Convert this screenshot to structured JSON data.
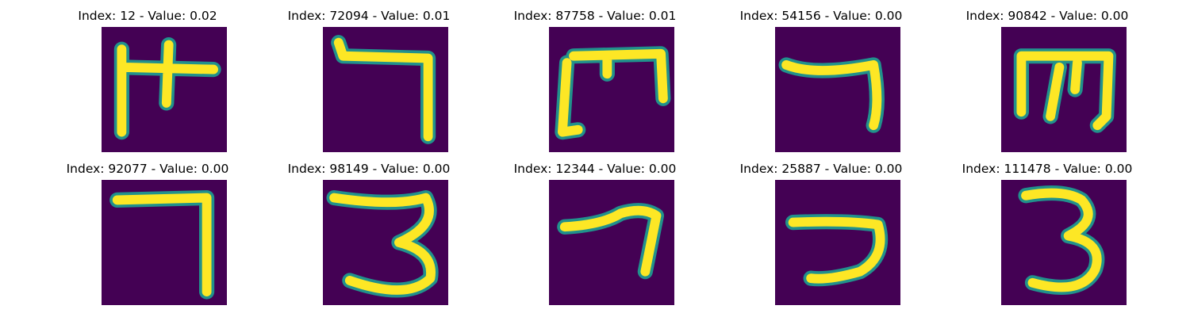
{
  "colors": {
    "background": "#440154",
    "stroke_core": "#fde725",
    "stroke_mid": "#7ad151",
    "stroke_edge": "#21918c"
  },
  "panels": [
    {
      "title": "Index: 12 - Value: 0.02",
      "glyph": "stroke-m-shape"
    },
    {
      "title": "Index: 72094 - Value: 0.01",
      "glyph": "stroke-hook-shape"
    },
    {
      "title": "Index: 87758 - Value: 0.01",
      "glyph": "stroke-m-shape"
    },
    {
      "title": "Index: 54156 - Value: 0.00",
      "glyph": "stroke-seven-shape"
    },
    {
      "title": "Index: 90842 - Value: 0.00",
      "glyph": "stroke-m-shape"
    },
    {
      "title": "Index: 92077 - Value: 0.00",
      "glyph": "stroke-seven-shape"
    },
    {
      "title": "Index: 98149 - Value: 0.00",
      "glyph": "stroke-three-shape"
    },
    {
      "title": "Index: 12344 - Value: 0.00",
      "glyph": "stroke-seven-shape"
    },
    {
      "title": "Index: 25887 - Value: 0.00",
      "glyph": "stroke-hook-shape"
    },
    {
      "title": "Index: 111478 - Value: 0.00",
      "glyph": "stroke-three-shape"
    }
  ]
}
